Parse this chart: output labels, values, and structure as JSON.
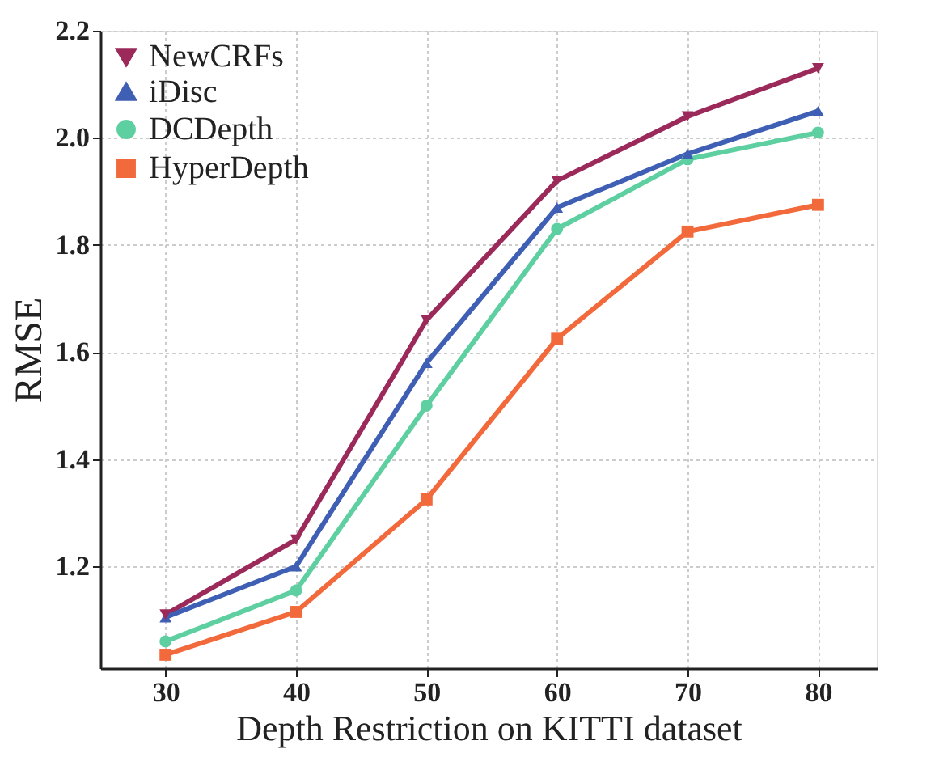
{
  "chart_data": {
    "type": "line",
    "xlabel": "Depth Restriction on KITTI dataset",
    "ylabel": "RMSE",
    "x": [
      30,
      40,
      50,
      60,
      70,
      80
    ],
    "series": [
      {
        "name": "NewCRFs",
        "color": "#9b2a5a",
        "marker": "triangle-down",
        "values": [
          1.11,
          1.25,
          1.66,
          1.92,
          2.04,
          2.13
        ]
      },
      {
        "name": "iDisc",
        "color": "#3f5fb5",
        "marker": "triangle",
        "values": [
          1.105,
          1.2,
          1.58,
          1.87,
          1.97,
          2.05
        ]
      },
      {
        "name": "DCDepth",
        "color": "#5ecfa0",
        "marker": "circle",
        "values": [
          1.06,
          1.155,
          1.5,
          1.83,
          1.96,
          2.01
        ]
      },
      {
        "name": "HyperDepth",
        "color": "#f26a3c",
        "marker": "square",
        "values": [
          1.035,
          1.115,
          1.325,
          1.625,
          1.825,
          1.875
        ]
      }
    ],
    "xlim": [
      25,
      84.5
    ],
    "ylim": [
      1.01,
      2.2
    ],
    "xticks": [
      30,
      40,
      50,
      60,
      70,
      80
    ],
    "yticks": [
      1.2,
      1.4,
      1.6,
      1.8,
      {
        "value": 2,
        "label": "2.0"
      },
      2.2
    ],
    "grid": true,
    "legend": "top left",
    "line_style": "solid"
  }
}
